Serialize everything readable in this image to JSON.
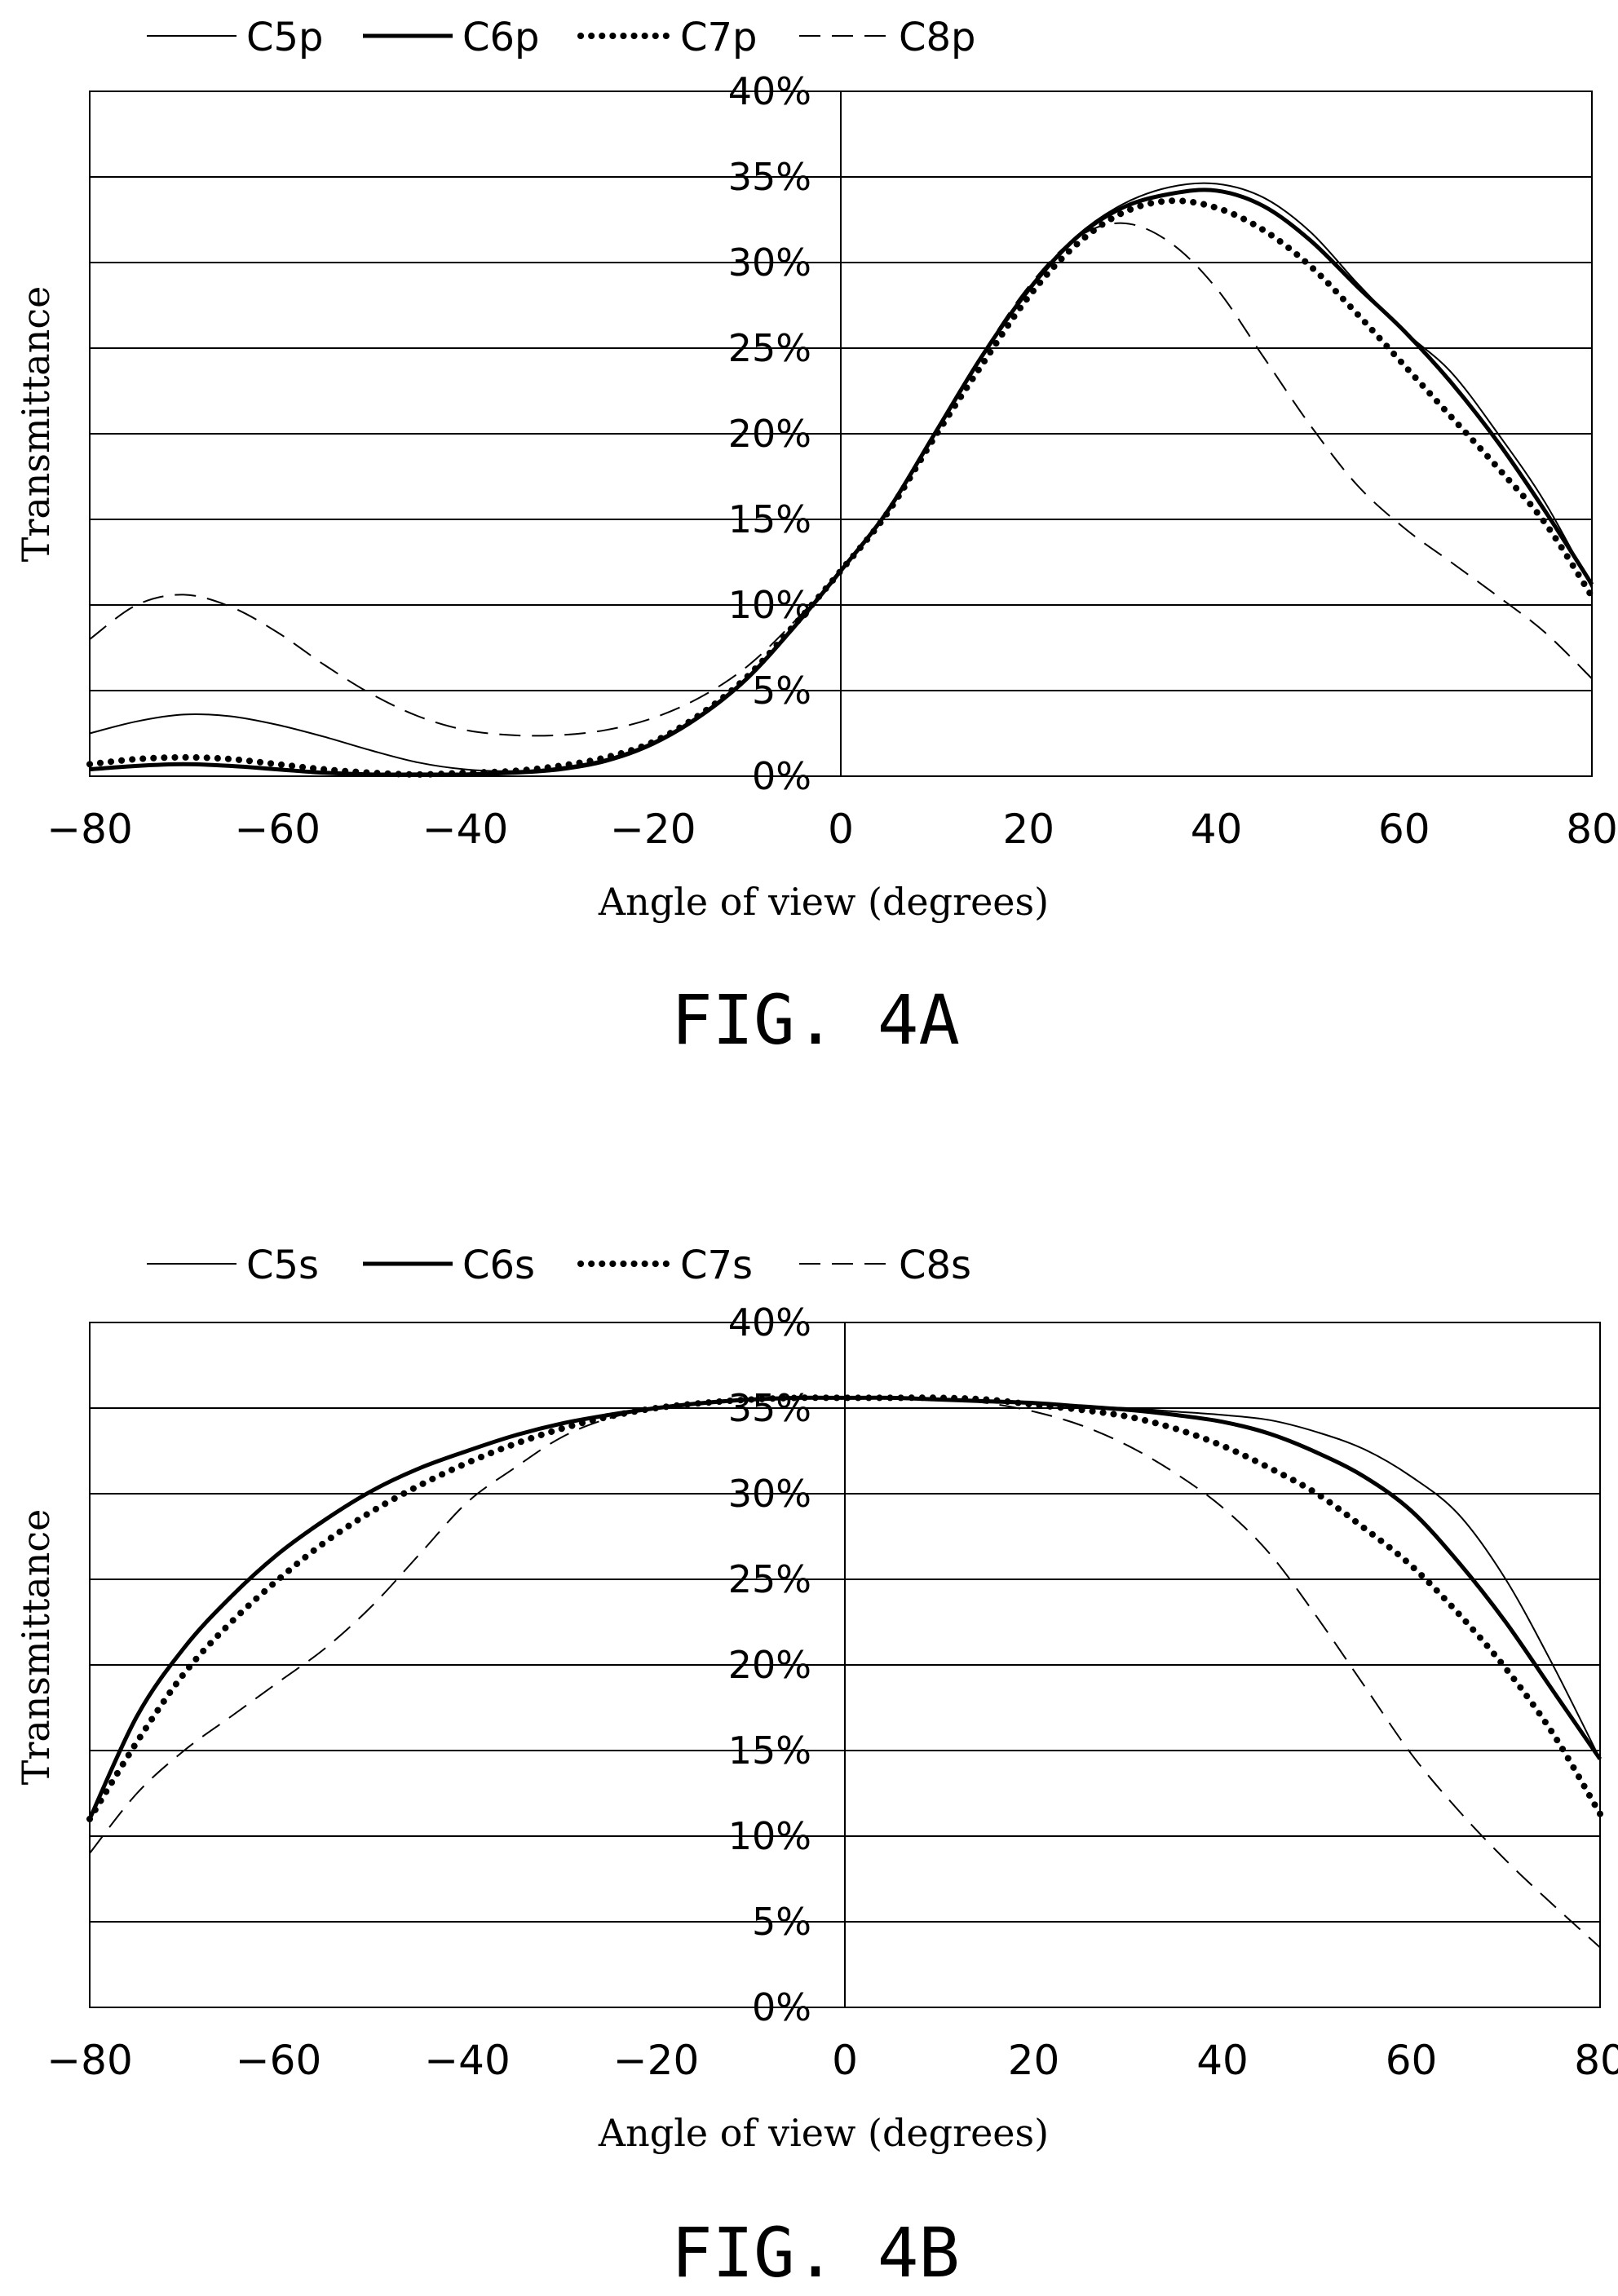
{
  "figures": [
    {
      "caption": "FIG. 4A",
      "xlabel": "Angle of view (degrees)",
      "ylabel": "Transmittance"
    },
    {
      "caption": "FIG. 4B",
      "xlabel": "Angle of view (degrees)",
      "ylabel": "Transmittance"
    }
  ],
  "chart_data": [
    {
      "type": "line",
      "title": "",
      "xlabel": "Angle of view (degrees)",
      "ylabel": "Transmittance",
      "xlim": [
        -80,
        80
      ],
      "ylim": [
        0,
        40
      ],
      "xticks": [
        "−80",
        "−60",
        "−40",
        "−20",
        "0",
        "20",
        "40",
        "60",
        "80"
      ],
      "yticks": [
        "0%",
        "5%",
        "10%",
        "15%",
        "20%",
        "25%",
        "30%",
        "35%",
        "40%"
      ],
      "grid": "horizontal",
      "legend": "top",
      "x": [
        -80,
        -75,
        -70,
        -65,
        -60,
        -55,
        -50,
        -45,
        -40,
        -35,
        -30,
        -25,
        -20,
        -15,
        -10,
        -5,
        0,
        5,
        10,
        15,
        20,
        25,
        30,
        35,
        40,
        45,
        50,
        55,
        60,
        65,
        70,
        75,
        80
      ],
      "series": [
        {
          "name": "C5p",
          "style": "thin",
          "values": [
            2.5,
            3.2,
            3.6,
            3.5,
            3.0,
            2.3,
            1.5,
            0.8,
            0.4,
            0.3,
            0.5,
            1.0,
            2.0,
            3.6,
            5.8,
            8.8,
            12.0,
            15.5,
            20.0,
            24.5,
            28.5,
            31.5,
            33.4,
            34.4,
            34.6,
            33.8,
            31.8,
            28.8,
            26.0,
            23.6,
            20.0,
            16.0,
            11.0
          ]
        },
        {
          "name": "C6p",
          "style": "thick",
          "values": [
            0.4,
            0.6,
            0.7,
            0.6,
            0.4,
            0.2,
            0.1,
            0.1,
            0.1,
            0.2,
            0.4,
            0.9,
            1.9,
            3.5,
            5.7,
            8.7,
            12.0,
            15.5,
            20.0,
            24.5,
            28.4,
            31.4,
            33.2,
            34.0,
            34.2,
            33.3,
            31.3,
            28.6,
            26.0,
            23.0,
            19.5,
            15.5,
            11.2
          ]
        },
        {
          "name": "C7p",
          "style": "dotted",
          "values": [
            0.7,
            1.0,
            1.1,
            1.0,
            0.7,
            0.4,
            0.2,
            0.1,
            0.2,
            0.3,
            0.6,
            1.1,
            2.0,
            3.6,
            5.8,
            8.8,
            12.0,
            15.4,
            19.8,
            24.0,
            28.0,
            31.0,
            32.9,
            33.6,
            33.2,
            31.9,
            29.8,
            27.0,
            24.0,
            21.0,
            18.0,
            14.8,
            10.5
          ]
        },
        {
          "name": "C8p",
          "style": "dashed",
          "values": [
            8.0,
            10.0,
            10.6,
            9.9,
            8.4,
            6.5,
            4.8,
            3.5,
            2.7,
            2.4,
            2.4,
            2.7,
            3.4,
            4.6,
            6.4,
            9.0,
            12.0,
            15.5,
            20.0,
            24.6,
            28.6,
            31.4,
            32.3,
            31.2,
            28.5,
            24.5,
            20.5,
            17.0,
            14.5,
            12.5,
            10.5,
            8.4,
            5.7
          ]
        }
      ]
    },
    {
      "type": "line",
      "title": "",
      "xlabel": "Angle of view (degrees)",
      "ylabel": "Transmittance",
      "xlim": [
        -80,
        80
      ],
      "ylim": [
        0,
        40
      ],
      "xticks": [
        "−80",
        "−60",
        "−40",
        "−20",
        "0",
        "20",
        "40",
        "60",
        "80"
      ],
      "yticks": [
        "0%",
        "5%",
        "10%",
        "15%",
        "20%",
        "25%",
        "30%",
        "35%",
        "40%"
      ],
      "grid": "horizontal",
      "legend": "top",
      "x": [
        -80,
        -75,
        -70,
        -65,
        -60,
        -55,
        -50,
        -45,
        -40,
        -35,
        -30,
        -25,
        -20,
        -15,
        -10,
        -5,
        0,
        5,
        10,
        15,
        20,
        25,
        30,
        35,
        40,
        45,
        50,
        55,
        60,
        65,
        70,
        75,
        80
      ],
      "series": [
        {
          "name": "C5s",
          "style": "thin",
          "values": [
            11.0,
            17.0,
            21.0,
            24.0,
            26.5,
            28.5,
            30.2,
            31.5,
            32.5,
            33.4,
            34.1,
            34.6,
            35.0,
            35.3,
            35.5,
            35.6,
            35.6,
            35.6,
            35.5,
            35.4,
            35.3,
            35.1,
            35.0,
            34.8,
            34.6,
            34.3,
            33.6,
            32.6,
            31.0,
            28.8,
            25.0,
            20.0,
            14.5
          ]
        },
        {
          "name": "C6s",
          "style": "thick",
          "values": [
            11.0,
            17.0,
            21.0,
            24.0,
            26.5,
            28.5,
            30.2,
            31.5,
            32.5,
            33.4,
            34.1,
            34.6,
            35.0,
            35.3,
            35.5,
            35.6,
            35.6,
            35.6,
            35.5,
            35.4,
            35.3,
            35.1,
            34.9,
            34.6,
            34.2,
            33.5,
            32.4,
            31.0,
            29.0,
            26.0,
            22.5,
            18.5,
            14.5
          ]
        },
        {
          "name": "C7s",
          "style": "dotted",
          "values": [
            11.0,
            15.5,
            19.5,
            22.5,
            25.0,
            27.2,
            29.0,
            30.5,
            31.8,
            32.9,
            33.8,
            34.5,
            35.0,
            35.3,
            35.5,
            35.6,
            35.6,
            35.6,
            35.6,
            35.5,
            35.2,
            34.9,
            34.5,
            33.8,
            32.8,
            31.5,
            30.0,
            28.0,
            25.8,
            23.0,
            19.8,
            16.0,
            11.3
          ]
        },
        {
          "name": "C8s",
          "style": "dashed",
          "values": [
            9.0,
            12.5,
            15.0,
            17.0,
            19.0,
            21.0,
            23.5,
            26.5,
            29.5,
            31.5,
            33.3,
            34.4,
            35.0,
            35.3,
            35.5,
            35.6,
            35.6,
            35.6,
            35.5,
            35.3,
            34.8,
            34.0,
            32.8,
            31.2,
            29.2,
            26.5,
            22.8,
            18.8,
            14.8,
            11.5,
            8.6,
            6.0,
            3.5
          ]
        }
      ]
    }
  ]
}
